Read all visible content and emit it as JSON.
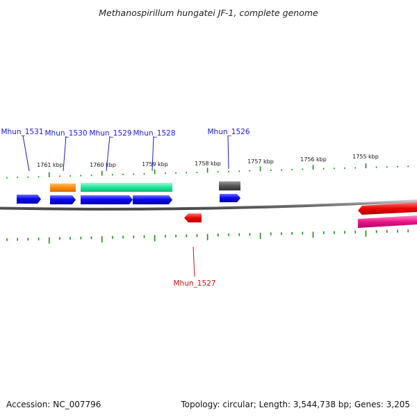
{
  "title": "Methanospirillum hungatei JF-1, complete genome",
  "footer": {
    "accession": "Accession: NC_007796",
    "summary": "Topology: circular; Length: 3,544,738 bp; Genes: 3,205"
  },
  "scale_labels": [
    "1761 kbp",
    "1760 kbp",
    "1759 kbp",
    "1758 kbp",
    "1757 kbp",
    "1756 kbp",
    "1755 kbp"
  ],
  "gene_labels": [
    {
      "name": "Mhun_1531",
      "color": "#1a1acc"
    },
    {
      "name": "Mhun_1530",
      "color": "#1a1acc"
    },
    {
      "name": "Mhun_1529",
      "color": "#1a1acc"
    },
    {
      "name": "Mhun_1528",
      "color": "#1a1acc"
    },
    {
      "name": "Mhun_1526",
      "color": "#1a1acc"
    },
    {
      "name": "Mhun_1527",
      "color": "#cc1111"
    }
  ],
  "feature_colors": {
    "blue": "#0a0aee",
    "orange": "#ff8c0a",
    "teal": "#1de89a",
    "gray": "#555555",
    "red": "#ee0000",
    "magenta": "#ee1188",
    "tick": "#1a8a1a",
    "backbone": "#777777"
  }
}
